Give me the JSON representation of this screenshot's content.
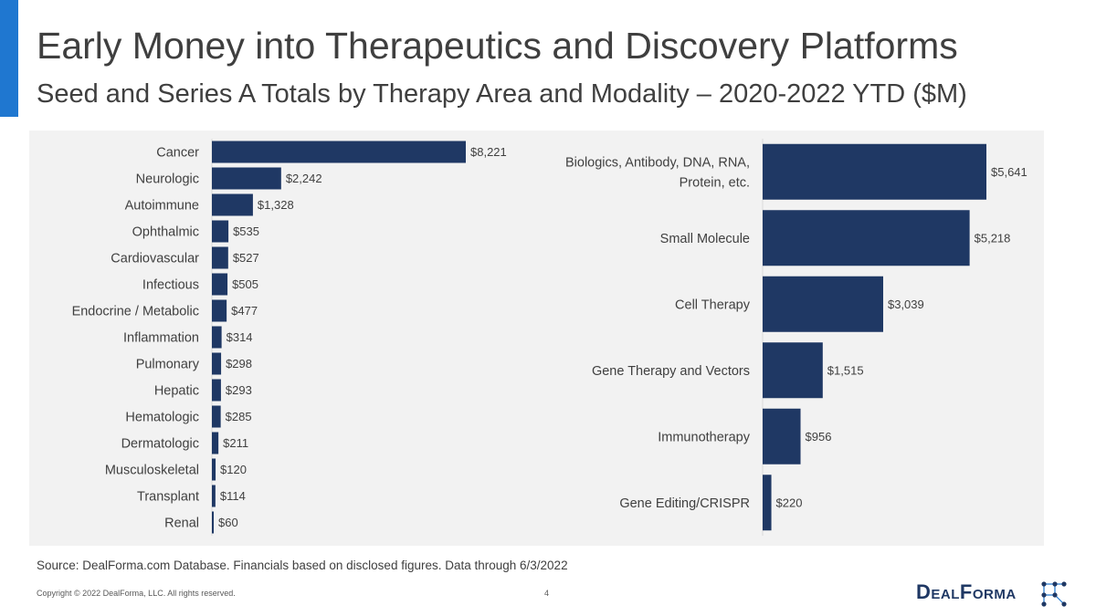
{
  "header": {
    "title": "Early Money into Therapeutics and Discovery Platforms",
    "subtitle": "Seed and Series A Totals by Therapy Area and Modality – 2020-2022 YTD ($M)"
  },
  "colors": {
    "accent": "#1f77d0",
    "bar": "#1f3864",
    "panel": "#f2f2f2"
  },
  "chart_data": [
    {
      "type": "bar",
      "orientation": "horizontal",
      "title": "",
      "categories": [
        "Cancer",
        "Neurologic",
        "Autoimmune",
        "Ophthalmic",
        "Cardiovascular",
        "Infectious",
        "Endocrine / Metabolic",
        "Inflammation",
        "Pulmonary",
        "Hepatic",
        "Hematologic",
        "Dermatologic",
        "Musculoskeletal",
        "Transplant",
        "Renal"
      ],
      "values": [
        8221,
        2242,
        1328,
        535,
        527,
        505,
        477,
        314,
        298,
        293,
        285,
        211,
        120,
        114,
        60
      ],
      "labels": [
        "$8,221",
        "$2,242",
        "$1,328",
        "$535",
        "$527",
        "$505",
        "$477",
        "$314",
        "$298",
        "$293",
        "$285",
        "$211",
        "$120",
        "$114",
        "$60"
      ],
      "xlim": [
        0,
        8221
      ],
      "grid": false
    },
    {
      "type": "bar",
      "orientation": "horizontal",
      "title": "",
      "categories": [
        "Biologics, Antibody, DNA, RNA,\nProtein, etc.",
        "Small Molecule",
        "Cell Therapy",
        "Gene Therapy and Vectors",
        "Immunotherapy",
        "Gene Editing/CRISPR"
      ],
      "values": [
        5641,
        5218,
        3039,
        1515,
        956,
        220
      ],
      "labels": [
        "$5,641",
        "$5,218",
        "$3,039",
        "$1,515",
        "$956",
        "$220"
      ],
      "xlim": [
        0,
        5641
      ],
      "grid": false
    }
  ],
  "footer": {
    "source": "Source: DealForma.com Database. Financials based on disclosed figures. Data through 6/3/2022",
    "copyright": "Copyright © 2022 DealForma, LLC. All rights reserved.",
    "page_number": "4",
    "logo_text": "DealForma"
  }
}
